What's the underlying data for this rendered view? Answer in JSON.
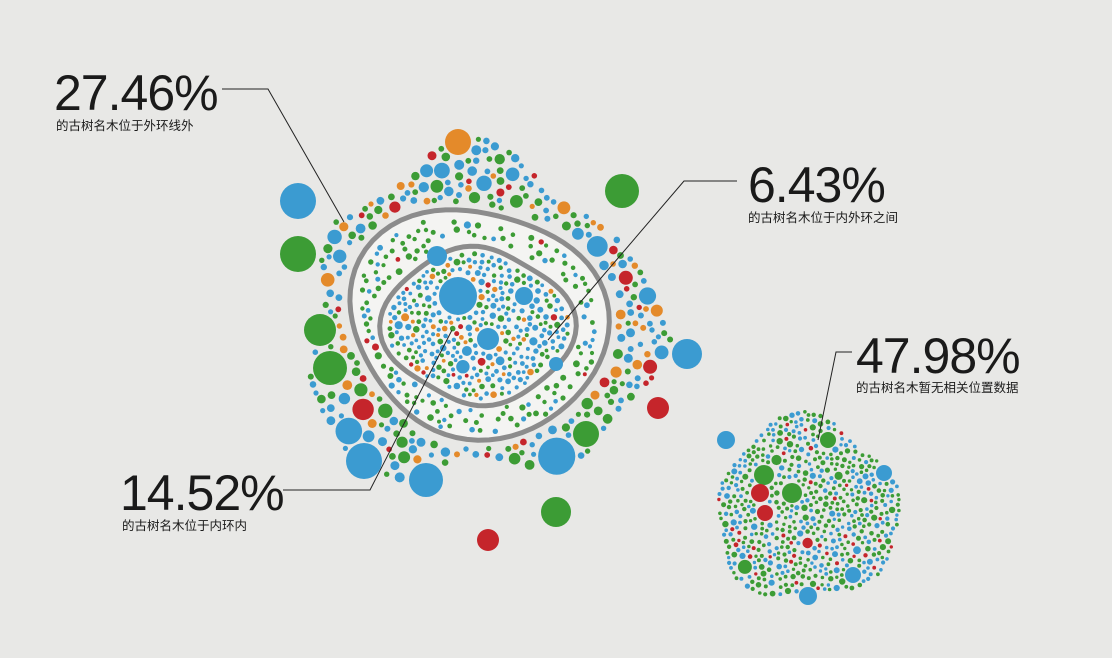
{
  "chart_data": {
    "type": "packed-bubble",
    "colors": {
      "blue": "#3b9bd1",
      "green": "#3c9c35",
      "orange": "#e48a2a",
      "red": "#c5252b",
      "ring": "#8c8c8c",
      "background": "#e8e8e6"
    },
    "annotations": [
      {
        "id": "outside-outer-ring",
        "value_text": "27.46%",
        "value": 27.46,
        "label": "的古树名木位于外环线外"
      },
      {
        "id": "between-rings",
        "value_text": "6.43%",
        "value": 6.43,
        "label": "的古树名木位于内外环之间"
      },
      {
        "id": "inside-inner-ring",
        "value_text": "14.52%",
        "value": 14.52,
        "label": "的古树名木位于内环内"
      },
      {
        "id": "no-location-data",
        "value_text": "47.98%",
        "value": 47.98,
        "label": "的古树名木暂无相关位置数据"
      }
    ]
  }
}
